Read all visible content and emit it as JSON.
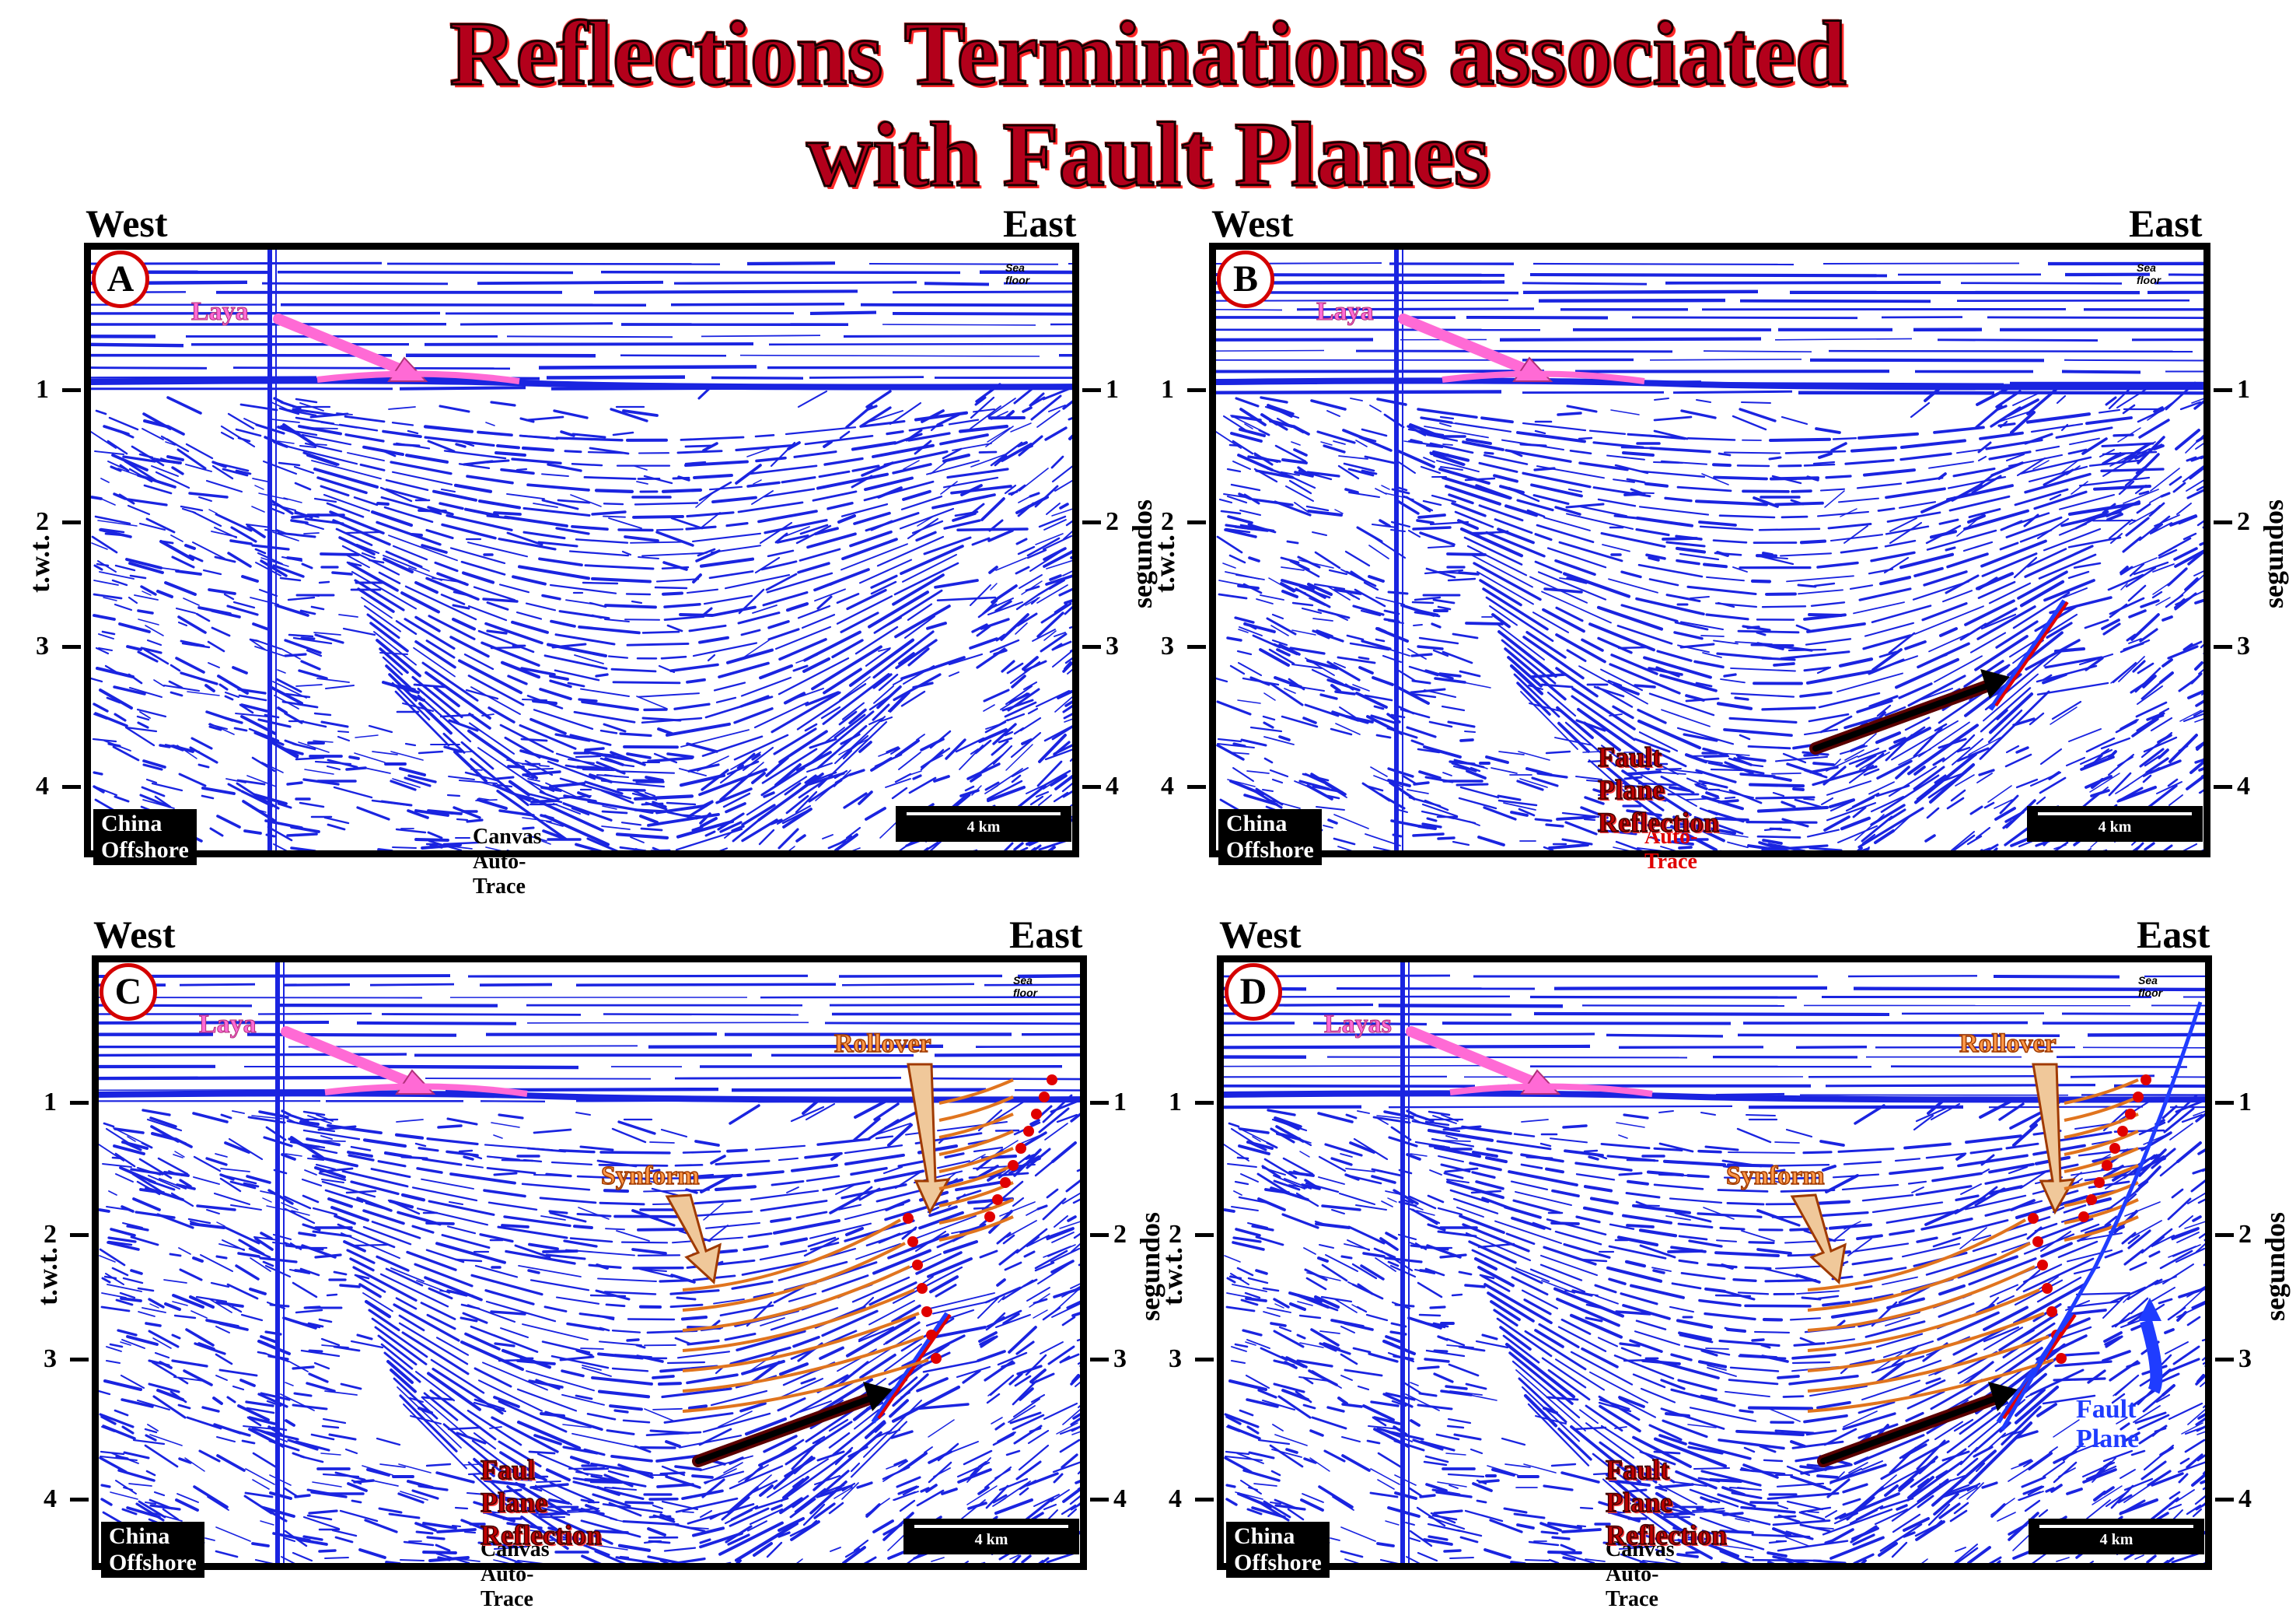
{
  "title": {
    "line1": "Reflections Terminations associated",
    "line2": "with Fault Planes"
  },
  "common": {
    "west": "West",
    "east": "East",
    "left_axis": "t.w.t.",
    "right_axis": "segundos",
    "ticks": [
      "1",
      "2",
      "3",
      "4"
    ],
    "sea_floor": "Sea floor",
    "location": "China Offshore",
    "scale": "4 km"
  },
  "panels": [
    {
      "id": "A",
      "lava_label": "Laya",
      "credit": "Canvas Auto-Trace",
      "credit_red": false
    },
    {
      "id": "B",
      "lava_label": "Laya",
      "fault_plane_reflection": "Fault Plane Reflection",
      "credit": "Auto-Trace",
      "credit_red": true
    },
    {
      "id": "C",
      "lava_label": "Laya",
      "rollover": "Rollover",
      "synform": "Synform",
      "fault_plane_reflection": "Faul Plane Reflection",
      "credit": "Canvas Auto-Trace",
      "credit_red": false
    },
    {
      "id": "D",
      "lava_label": "Layas",
      "rollover": "Rollover",
      "synform": "Synform",
      "fault_plane_reflection": "Fault Plane Reflection",
      "fault_plane": "Fault Plane",
      "credit": "Canvas Auto-Trace",
      "credit_red": false
    }
  ],
  "colors": {
    "seismic": "#1a24e0",
    "annotation_red": "#e00000",
    "horizon_orange": "#e0741e",
    "lava_pink": "#ff6ad5",
    "fault_blue": "#1f3cff"
  }
}
